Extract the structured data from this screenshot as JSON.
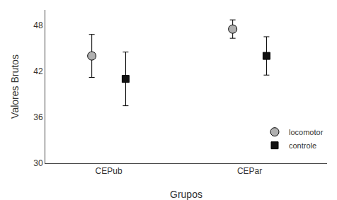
{
  "chart_data": {
    "type": "scatter",
    "categories": [
      "CEPub",
      "CEPar"
    ],
    "series": [
      {
        "name": "locomotor",
        "color": "#b0b0b0",
        "marker": "circle",
        "values": [
          44.0,
          47.5
        ],
        "errors": [
          2.8,
          1.2
        ]
      },
      {
        "name": "controle",
        "color": "#111111",
        "marker": "square",
        "values": [
          41.0,
          44.0
        ],
        "errors": [
          3.5,
          2.5
        ]
      }
    ],
    "xlabel": "Grupos",
    "ylabel": "Valores Brutos",
    "ylim": [
      30,
      50
    ],
    "yticks": [
      30,
      36,
      42,
      48
    ],
    "grid": false,
    "legend": "lower right"
  }
}
